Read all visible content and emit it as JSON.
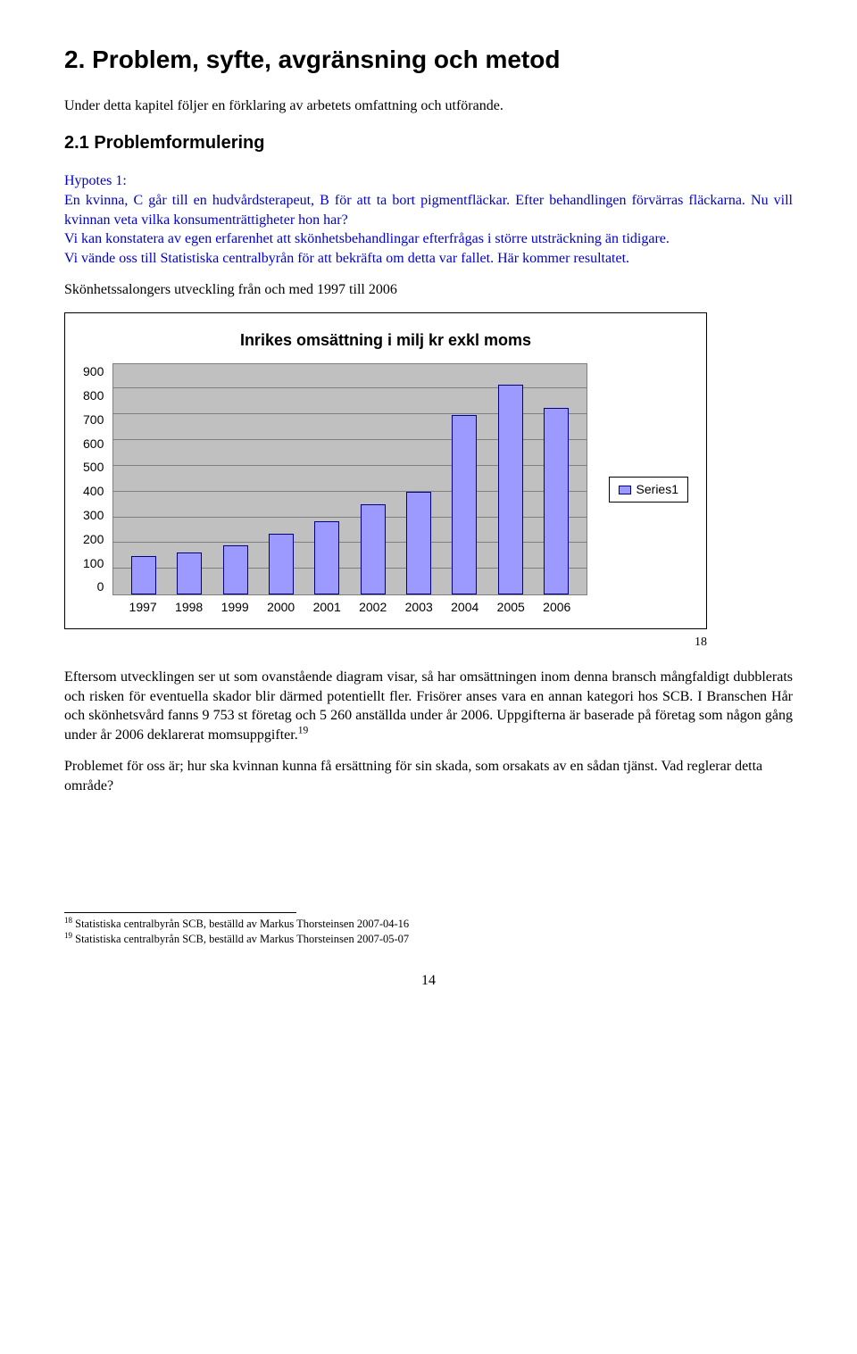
{
  "h1": "2. Problem, syfte, avgränsning och metod",
  "intro": "Under detta kapitel följer en förklaring av arbetets omfattning och utförande.",
  "h2": "2.1 Problemformulering",
  "hypotes": {
    "label": "Hypotes 1:",
    "l1": "En kvinna, C går till en hudvårdsterapeut, B för att ta bort pigmentfläckar. Efter behandlingen förvärras fläckarna. Nu vill kvinnan veta vilka konsumenträttigheter hon har?",
    "l2": "Vi kan konstatera av egen erfarenhet att skönhetsbehandlingar efterfrågas i större utsträckning än tidigare.",
    "l3": "Vi vände oss till Statistiska centralbyrån för att bekräfta om detta var fallet. Här kommer resultatet."
  },
  "section_title": "Skönhetssalongers utveckling från och med 1997 till 2006",
  "chart": {
    "type": "bar",
    "title": "Inrikes omsättning i milj kr exkl moms",
    "categories": [
      "1997",
      "1998",
      "1999",
      "2000",
      "2001",
      "2002",
      "2003",
      "2004",
      "2005",
      "2006"
    ],
    "values": [
      150,
      165,
      190,
      235,
      285,
      350,
      400,
      695,
      815,
      725
    ],
    "bar_color": "#9c99ff",
    "bar_border": "#000080",
    "plot_bg": "#c0c0c0",
    "grid_color": "#7f7f7f",
    "ylim_max": 900,
    "ytick_step": 100,
    "yticks": [
      "900",
      "800",
      "700",
      "600",
      "500",
      "400",
      "300",
      "200",
      "100",
      "0"
    ],
    "legend_label": "Series1",
    "footnote_ref": "18"
  },
  "after_chart_p1": "Eftersom utvecklingen ser ut som ovanstående diagram visar, så har omsättningen inom denna bransch mångfaldigt dubblerats och risken för eventuella skador blir därmed potentiellt fler. Frisörer anses vara en annan kategori hos SCB. I Branschen Hår och skönhetsvård fanns 9 753 st företag och 5 260 anställda under år 2006. Uppgifterna är baserade på företag som någon gång under år 2006 deklarerat momsuppgifter.",
  "after_chart_p1_ref": "19",
  "after_chart_p2": "Problemet för oss är; hur ska kvinnan kunna få ersättning för sin skada, som orsakats av en sådan tjänst. Vad reglerar detta område?",
  "footnotes": {
    "fn18": "Statistiska centralbyrån SCB, beställd av Markus Thorsteinsen 2007-04-16",
    "fn19": "Statistiska centralbyrån SCB, beställd av Markus Thorsteinsen 2007-05-07",
    "n18": "18",
    "n19": "19"
  },
  "page_number": "14"
}
